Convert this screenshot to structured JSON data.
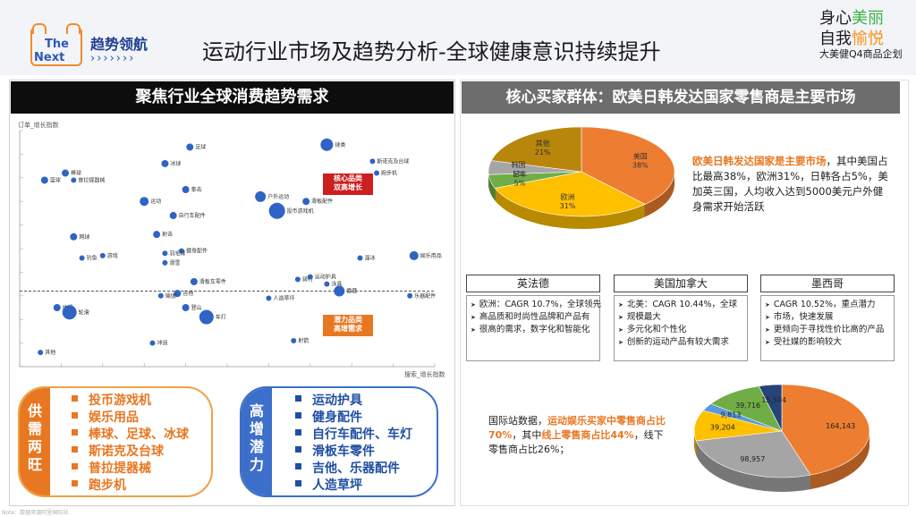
{
  "header": {
    "brand_the": "The",
    "brand_next": "Next",
    "brand_title": "趋势领航",
    "brand_arrows": "›››››››",
    "page_title": "运动行业市场及趋势分析-全球健康意识持续提升",
    "slogan_line1_a": "身心",
    "slogan_line1_b": "美丽",
    "slogan_line2_a": "自我",
    "slogan_line2_b": "愉悦",
    "slogan_line3": "大美健Q4商品企划"
  },
  "left": {
    "section_title": "聚焦行业全球消费趋势需求",
    "tag_red_line1": "核心品类",
    "tag_red_line2": "双高增长",
    "tag_orange_line1": "潜力品类",
    "tag_orange_line2": "高增需求",
    "group_a_label": "供需两旺",
    "group_a_items": [
      "投币游戏机",
      "娱乐用品",
      "棒球、足球、冰球",
      "斯诺克及台球",
      "普拉提器械",
      "跑步机"
    ],
    "group_b_label": "高增潜力",
    "group_b_items": [
      "运动护具",
      "健身配件",
      "自行车配件、车灯",
      "滑板车零件",
      "吉他、乐器配件",
      "人造草坪"
    ]
  },
  "chart_data": [
    {
      "type": "scatter",
      "title": "聚焦行业全球消费趋势需求",
      "ylabel": "订单_增长指数",
      "xlabel": "搜索_增长指数",
      "xlim": [
        0,
        100
      ],
      "ylim": [
        0,
        100
      ],
      "grid": true,
      "reference_line_y": 32,
      "points": [
        {
          "label": "球类",
          "x": 74,
          "y": 94,
          "r": 7
        },
        {
          "label": "足球",
          "x": 41,
          "y": 93,
          "r": 4
        },
        {
          "label": "棒球",
          "x": 11,
          "y": 82,
          "r": 4
        },
        {
          "label": "冰球",
          "x": 35,
          "y": 86,
          "r": 4
        },
        {
          "label": "斯诺克及台球",
          "x": 85,
          "y": 87,
          "r": 3
        },
        {
          "label": "跑步机",
          "x": 86,
          "y": 82,
          "r": 3
        },
        {
          "label": "普拉提器械",
          "x": 13,
          "y": 79,
          "r": 3
        },
        {
          "label": "篮球",
          "x": 6,
          "y": 79,
          "r": 4
        },
        {
          "label": "拳击",
          "x": 40,
          "y": 75,
          "r": 4
        },
        {
          "label": "户外运动",
          "x": 58,
          "y": 72,
          "r": 6
        },
        {
          "label": "运动",
          "x": 30,
          "y": 70,
          "r": 5
        },
        {
          "label": "滑板配件",
          "x": 69,
          "y": 70,
          "r": 4
        },
        {
          "label": "投币游戏机",
          "x": 62,
          "y": 66,
          "r": 9
        },
        {
          "label": "自行车配件",
          "x": 37,
          "y": 64,
          "r": 4
        },
        {
          "label": "网球",
          "x": 13,
          "y": 55,
          "r": 4
        },
        {
          "label": "射击",
          "x": 33,
          "y": 56,
          "r": 4
        },
        {
          "label": "游戏",
          "x": 20,
          "y": 47,
          "r": 3
        },
        {
          "label": "健身配件",
          "x": 39,
          "y": 49,
          "r": 3
        },
        {
          "label": "钓鱼",
          "x": 15,
          "y": 46,
          "r": 3
        },
        {
          "label": "羽毛球",
          "x": 35,
          "y": 48,
          "r": 3
        },
        {
          "label": "滑雪",
          "x": 35,
          "y": 44,
          "r": 3
        },
        {
          "label": "溜冰",
          "x": 82,
          "y": 46,
          "r": 3
        },
        {
          "label": "娱乐用品",
          "x": 95,
          "y": 47,
          "r": 5
        },
        {
          "label": "骑行",
          "x": 67,
          "y": 37,
          "r": 3
        },
        {
          "label": "运动护具",
          "x": 70,
          "y": 38,
          "r": 3
        },
        {
          "label": "滑板车零件",
          "x": 42,
          "y": 36,
          "r": 4
        },
        {
          "label": "泳具",
          "x": 74,
          "y": 35,
          "r": 3
        },
        {
          "label": "露营",
          "x": 77,
          "y": 32,
          "r": 6
        },
        {
          "label": "吉他",
          "x": 38,
          "y": 31,
          "r": 4
        },
        {
          "label": "瑜伽",
          "x": 34,
          "y": 30,
          "r": 3
        },
        {
          "label": "人造草坪",
          "x": 60,
          "y": 29,
          "r": 3
        },
        {
          "label": "乐器配件",
          "x": 94,
          "y": 30,
          "r": 3
        },
        {
          "label": "体操",
          "x": 9,
          "y": 25,
          "r": 4
        },
        {
          "label": "轮滑",
          "x": 12,
          "y": 23,
          "r": 8
        },
        {
          "label": "登山",
          "x": 40,
          "y": 25,
          "r": 4
        },
        {
          "label": "车灯",
          "x": 45,
          "y": 21,
          "r": 8
        },
        {
          "label": "冲浪",
          "x": 32,
          "y": 10,
          "r": 3
        },
        {
          "label": "射箭",
          "x": 66,
          "y": 11,
          "r": 3
        },
        {
          "label": "其他",
          "x": 5,
          "y": 6,
          "r": 3
        }
      ]
    },
    {
      "type": "pie",
      "title": "核心买家群体：欧美日韩发达国家零售商是主要市场",
      "categories": [
        "美国",
        "欧洲",
        "日本",
        "韩国",
        "其他"
      ],
      "labels": [
        "美国\n38%",
        "欧洲\n31%",
        "日本\n5%",
        "韩国\n5%",
        "其他\n21%"
      ],
      "values": [
        38,
        31,
        5,
        5,
        21
      ],
      "colors": [
        "#ed7d31",
        "#ffc000",
        "#70ad47",
        "#a5a5a5",
        "#b8860b"
      ]
    },
    {
      "type": "pie",
      "values": [
        164143,
        98957,
        39204,
        9813,
        39716,
        15504
      ],
      "labels": [
        "164,143",
        "98,957",
        "39,204",
        "9,813",
        "39,716",
        "15,504"
      ],
      "colors": [
        "#ed7d31",
        "#a5a5a5",
        "#ffc000",
        "#5b9bd5",
        "#70ad47",
        "#264478"
      ]
    }
  ],
  "right": {
    "section_title": "核心买家群体：欧美日韩发达国家零售商是主要市场",
    "desc_em": "欧美日韩发达国家是主要市场",
    "desc_rest": "，其中美国占比最高38%，欧洲31%，日韩各占5%，美加英三国，人均收入达到5000美元户外健身需求开始活跃",
    "regions": [
      {
        "title": "英法德",
        "items": [
          "欧洲：CAGR 10.7%，全球领先",
          "高品质和时尚性品牌和产品有",
          "很高的需求，数字化和智能化"
        ]
      },
      {
        "title": "美国加拿大",
        "items": [
          "北美：CAGR 10.44%，全球",
          "规模最大",
          "多元化和个性化",
          "创新的运动产品有较大需求"
        ]
      },
      {
        "title": "墨西哥",
        "items": [
          "CAGR 10.52%，重点潜力",
          "市场，快速发展",
          "更倾向于寻找性价比高的产品",
          "受社媒的影响较大"
        ]
      }
    ],
    "bottom_desc_a": "国际站数据，",
    "bottom_desc_em1": "运动娱乐买家中零售商占比70%",
    "bottom_desc_b": "，其中",
    "bottom_desc_em2": "线上零售商占比44%",
    "bottom_desc_c": "，线下零售商占比26%；"
  },
  "footer": {
    "note": "Note：数据来源阿里国际站"
  }
}
